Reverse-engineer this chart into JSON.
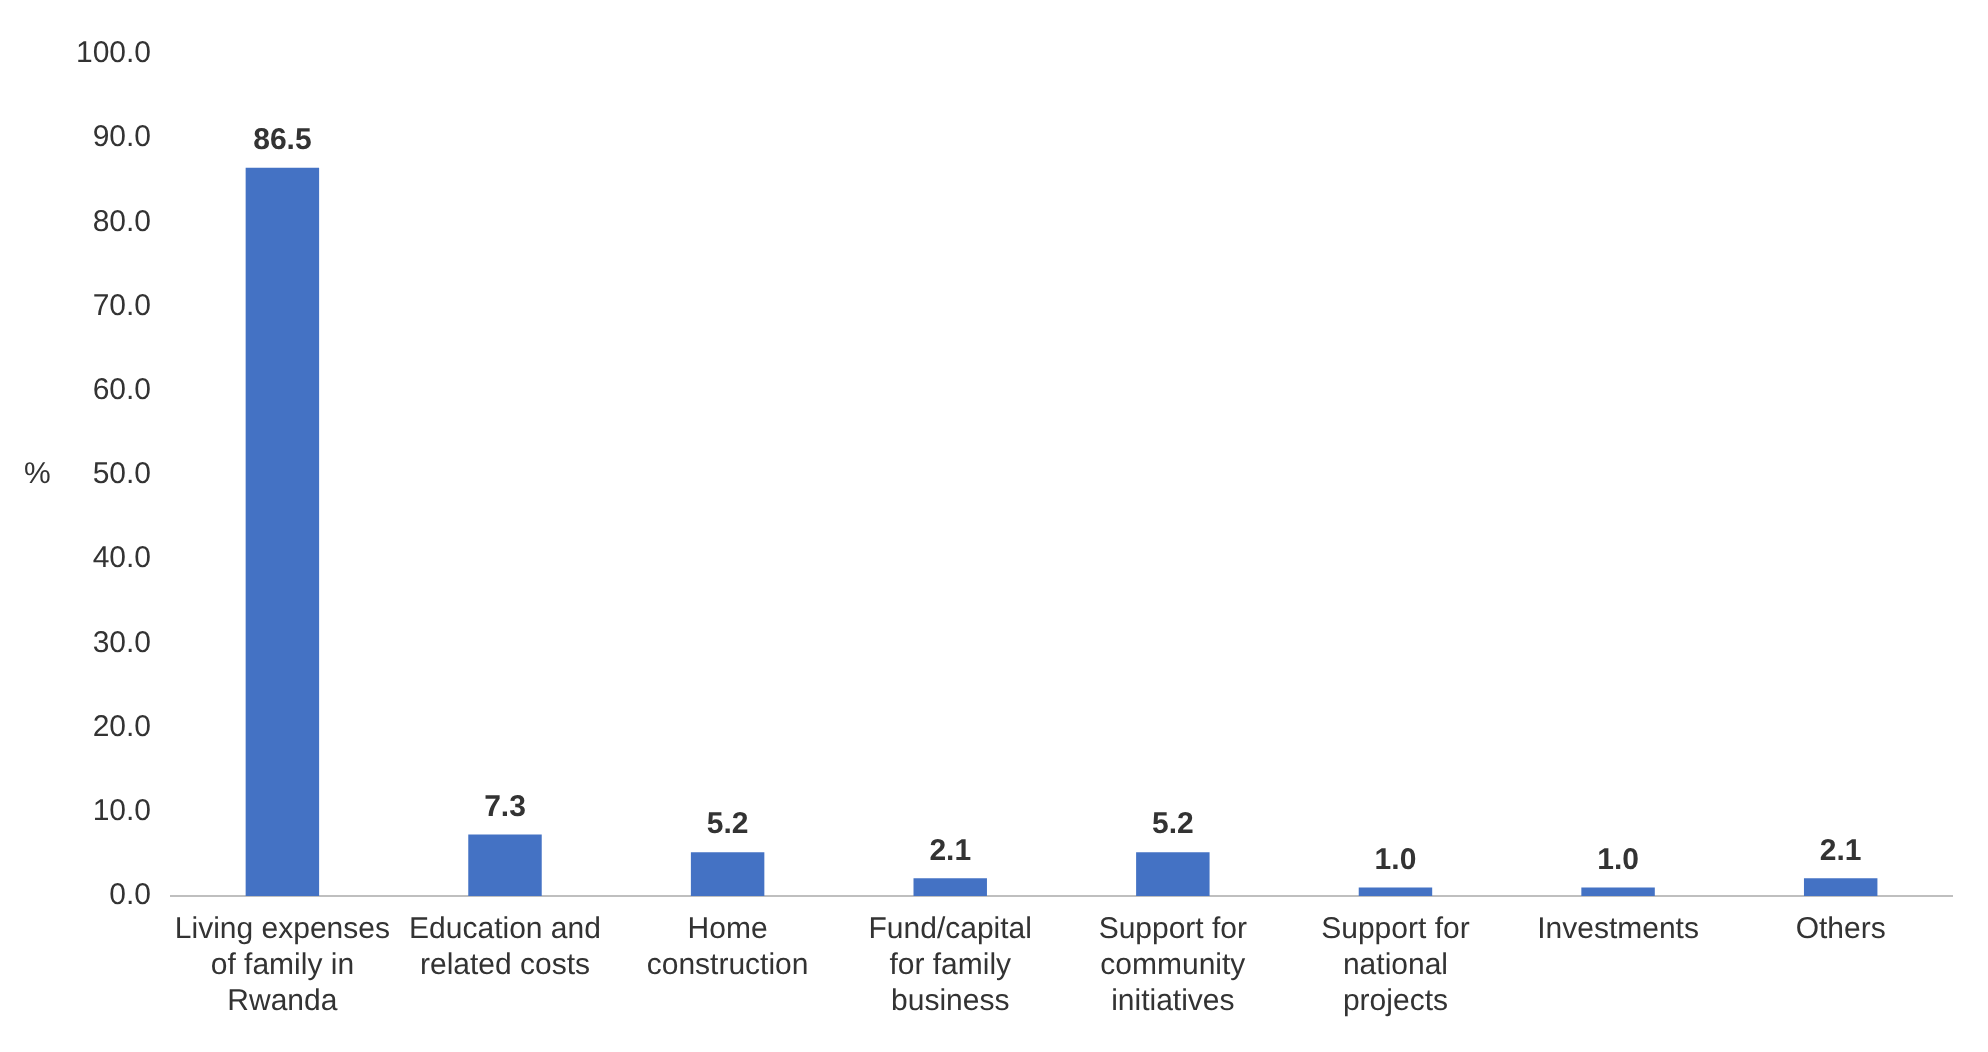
{
  "chart_data": {
    "type": "bar",
    "ylabel": "%",
    "categories": [
      "Living expenses of family in Rwanda",
      "Education and related costs",
      "Home construction",
      "Fund/capital for family business",
      "Support for community initiatives",
      "Support for national projects",
      "Investments",
      "Others"
    ],
    "values": [
      86.5,
      7.3,
      5.2,
      2.1,
      5.2,
      1.0,
      1.0,
      2.1
    ],
    "color": "#4472c4",
    "ylim": [
      0,
      100
    ],
    "yticks": [
      {
        "value": 0,
        "label": "0.0"
      },
      {
        "value": 10,
        "label": "10.0"
      },
      {
        "value": 20,
        "label": "20.0"
      },
      {
        "value": 30,
        "label": "30.0"
      },
      {
        "value": 40,
        "label": "40.0"
      },
      {
        "value": 50,
        "label": "50.0"
      },
      {
        "value": 60,
        "label": "60.0"
      },
      {
        "value": 70,
        "label": "70.0"
      },
      {
        "value": 80,
        "label": "80.0"
      },
      {
        "value": 90,
        "label": "90.0"
      },
      {
        "value": 100,
        "label": "100.0"
      }
    ],
    "value_labels": [
      "86.5",
      "7.3",
      "5.2",
      "2.1",
      "5.2",
      "1.0",
      "1.0",
      "2.1"
    ],
    "grid": false,
    "legend": false
  }
}
